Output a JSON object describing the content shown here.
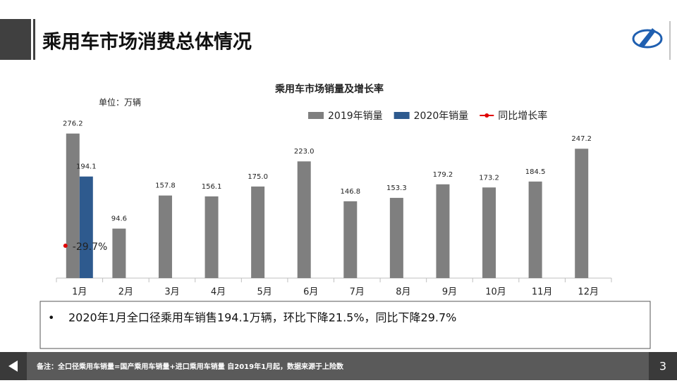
{
  "header": {
    "title": "乘用车市场消费总体情况"
  },
  "chart_data": {
    "type": "bar",
    "title": "乘用车市场销量及增长率",
    "unit_label": "单位：万辆",
    "categories": [
      "1月",
      "2月",
      "3月",
      "4月",
      "5月",
      "6月",
      "7月",
      "8月",
      "9月",
      "10月",
      "11月",
      "12月"
    ],
    "series": [
      {
        "name": "2019年销量",
        "color": "#7f7f7f",
        "values": [
          276.2,
          94.6,
          157.8,
          156.1,
          175.0,
          223.0,
          146.8,
          153.3,
          179.2,
          173.2,
          184.5,
          247.2
        ],
        "value_labels": [
          "276.2",
          "94.6",
          "157.8",
          "156.1",
          "175.0",
          "223.0",
          "146.8",
          "153.3",
          "179.2",
          "173.2",
          "184.5",
          "247.2"
        ]
      },
      {
        "name": "2020年销量",
        "color": "#2e5a8e",
        "values": [
          194.1,
          null,
          null,
          null,
          null,
          null,
          null,
          null,
          null,
          null,
          null,
          null
        ],
        "value_labels": [
          "194.1",
          null,
          null,
          null,
          null,
          null,
          null,
          null,
          null,
          null,
          null,
          null
        ]
      },
      {
        "name": "同比增长率",
        "color": "#e00000",
        "type": "line",
        "axis": "y2",
        "values": [
          -29.7,
          null,
          null,
          null,
          null,
          null,
          null,
          null,
          null,
          null,
          null,
          null
        ],
        "value_labels": [
          "-29.7%",
          null,
          null,
          null,
          null,
          null,
          null,
          null,
          null,
          null,
          null,
          null
        ]
      }
    ],
    "ylim": [
      0,
      300
    ],
    "y2lim": [
      -40,
      10
    ],
    "legend": "top-right"
  },
  "bullets": [
    "2020年1月全口径乘用车销售194.1万辆，环比下降21.5%，同比下降29.7%"
  ],
  "footer": {
    "note": "备注：全口径乘用车销量=国产乘用车销量+进口乘用车销量 自2019年1月起，数据来源于上险数",
    "page": "3"
  }
}
